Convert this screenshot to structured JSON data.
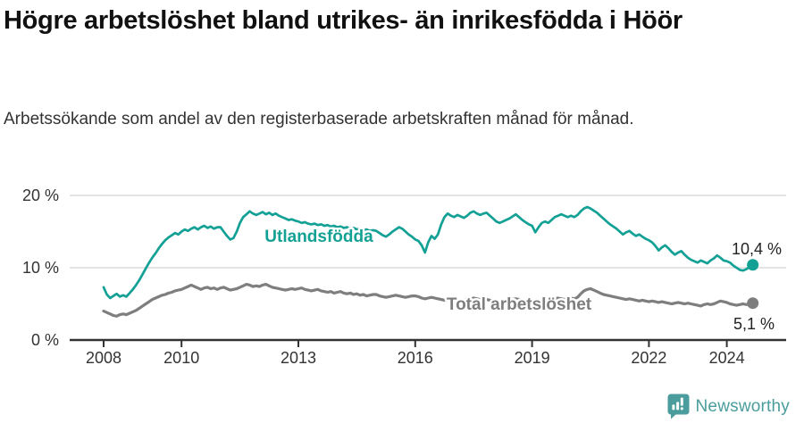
{
  "header": {
    "title": "Högre arbetslöshet bland utrikes- än inrikesfödda i Höör",
    "subtitle": "Arbetssökande som andel av den registerbaserade arbetskraften månad för månad."
  },
  "footer": {
    "brand": "Newsworthy"
  },
  "colors": {
    "accent_teal": "#13a095",
    "line_gray": "#7e7e7e",
    "logo_teal": "#4a9d9c",
    "grid": "#dcdcdc",
    "axis": "#333333",
    "label_text": "#222222"
  },
  "chart_data": {
    "type": "line",
    "unit": "%",
    "frequency": "monthly",
    "x_start": {
      "year": 2008,
      "month": 1
    },
    "x_end": {
      "year": 2024,
      "month": 9
    },
    "ylim": [
      0,
      20
    ],
    "grid": true,
    "yticks": [
      {
        "value": 0,
        "label": "0 %"
      },
      {
        "value": 10,
        "label": "10 %"
      },
      {
        "value": 20,
        "label": "20 %"
      }
    ],
    "xticks": [
      {
        "year": 2008,
        "label": "2008"
      },
      {
        "year": 2010,
        "label": "2010"
      },
      {
        "year": 2013,
        "label": "2013"
      },
      {
        "year": 2016,
        "label": "2016"
      },
      {
        "year": 2019,
        "label": "2019"
      },
      {
        "year": 2022,
        "label": "2022"
      },
      {
        "year": 2024,
        "label": "2024"
      }
    ],
    "series": [
      {
        "name": "Utlandsfödda",
        "color": "#13a095",
        "end_value": 10.4,
        "end_label": "10,4 %",
        "values": [
          7.3,
          6.3,
          5.8,
          6.1,
          6.4,
          6.0,
          6.2,
          6.0,
          6.5,
          7.0,
          7.6,
          8.3,
          9.1,
          9.9,
          10.7,
          11.4,
          12.0,
          12.7,
          13.3,
          13.8,
          14.2,
          14.5,
          14.8,
          14.6,
          15.0,
          15.3,
          15.1,
          15.4,
          15.6,
          15.3,
          15.6,
          15.8,
          15.5,
          15.7,
          15.4,
          15.6,
          15.6,
          15.0,
          14.4,
          13.9,
          14.1,
          15.0,
          16.2,
          17.0,
          17.4,
          17.8,
          17.5,
          17.3,
          17.5,
          17.7,
          17.4,
          17.6,
          17.3,
          17.5,
          17.2,
          17.0,
          16.8,
          16.6,
          16.7,
          16.5,
          16.4,
          16.2,
          16.3,
          16.1,
          16.0,
          16.1,
          15.9,
          16.0,
          15.8,
          15.9,
          15.7,
          15.8,
          15.6,
          15.7,
          15.5,
          15.6,
          15.4,
          15.5,
          15.3,
          15.4,
          15.2,
          15.3,
          15.1,
          15.2,
          15.1,
          14.8,
          14.5,
          14.3,
          14.6,
          15.0,
          15.3,
          15.6,
          15.4,
          15.0,
          14.6,
          14.3,
          13.9,
          13.7,
          13.1,
          12.1,
          13.5,
          14.4,
          14.0,
          14.6,
          16.0,
          17.0,
          17.5,
          17.2,
          17.0,
          17.3,
          17.1,
          16.9,
          17.2,
          17.6,
          17.8,
          17.5,
          17.3,
          17.5,
          17.6,
          17.2,
          16.8,
          16.4,
          16.2,
          16.4,
          16.6,
          16.8,
          17.1,
          17.4,
          17.0,
          16.6,
          16.3,
          16.0,
          15.8,
          14.9,
          15.6,
          16.2,
          16.4,
          16.2,
          16.6,
          17.0,
          17.2,
          17.4,
          17.2,
          17.0,
          17.2,
          17.0,
          17.3,
          17.8,
          18.2,
          18.4,
          18.2,
          17.9,
          17.6,
          17.2,
          16.8,
          16.4,
          16.0,
          15.7,
          15.4,
          15.0,
          14.6,
          14.9,
          15.1,
          14.7,
          14.4,
          14.6,
          14.3,
          14.0,
          13.8,
          13.5,
          13.0,
          12.4,
          12.8,
          13.1,
          12.7,
          12.2,
          11.8,
          12.1,
          12.3,
          11.8,
          11.4,
          11.1,
          10.9,
          10.7,
          11.0,
          10.8,
          10.6,
          11.0,
          11.3,
          11.7,
          11.4,
          11.0,
          10.9,
          10.7,
          10.3,
          10.0,
          9.7,
          9.6,
          9.8,
          10.1,
          10.4
        ]
      },
      {
        "name": "Total arbetslöshet",
        "color": "#7e7e7e",
        "end_value": 5.1,
        "end_label": "5,1 %",
        "values": [
          4.0,
          3.8,
          3.6,
          3.4,
          3.3,
          3.5,
          3.6,
          3.5,
          3.7,
          3.9,
          4.1,
          4.4,
          4.7,
          5.0,
          5.3,
          5.6,
          5.8,
          6.0,
          6.2,
          6.3,
          6.5,
          6.6,
          6.8,
          6.9,
          7.0,
          7.2,
          7.4,
          7.6,
          7.4,
          7.2,
          7.0,
          7.2,
          7.3,
          7.1,
          7.2,
          7.0,
          7.2,
          7.3,
          7.1,
          6.9,
          7.0,
          7.1,
          7.3,
          7.5,
          7.7,
          7.6,
          7.4,
          7.5,
          7.4,
          7.6,
          7.7,
          7.5,
          7.3,
          7.2,
          7.1,
          7.0,
          6.9,
          7.0,
          7.1,
          7.0,
          7.1,
          7.2,
          7.0,
          6.9,
          6.8,
          6.9,
          7.0,
          6.8,
          6.7,
          6.6,
          6.7,
          6.5,
          6.6,
          6.7,
          6.5,
          6.4,
          6.5,
          6.3,
          6.4,
          6.2,
          6.3,
          6.1,
          6.2,
          6.3,
          6.3,
          6.1,
          6.0,
          5.9,
          6.0,
          6.1,
          6.2,
          6.1,
          6.0,
          5.9,
          6.0,
          6.1,
          6.1,
          6.0,
          5.8,
          5.7,
          5.8,
          5.9,
          5.8,
          5.7,
          5.6,
          5.5,
          5.6,
          5.5,
          5.6,
          5.5,
          5.4,
          5.5,
          5.6,
          5.7,
          5.8,
          5.7,
          5.6,
          5.5,
          5.6,
          5.5,
          5.4,
          5.3,
          5.4,
          5.5,
          5.6,
          5.5,
          5.6,
          5.7,
          5.6,
          5.5,
          5.4,
          5.5,
          5.4,
          5.3,
          5.4,
          5.5,
          5.6,
          5.5,
          5.6,
          5.7,
          5.8,
          5.7,
          5.6,
          5.7,
          5.8,
          5.7,
          5.9,
          6.4,
          6.8,
          7.0,
          7.1,
          6.9,
          6.7,
          6.5,
          6.3,
          6.2,
          6.1,
          6.0,
          5.9,
          5.8,
          5.7,
          5.6,
          5.7,
          5.6,
          5.5,
          5.4,
          5.5,
          5.4,
          5.3,
          5.4,
          5.3,
          5.2,
          5.3,
          5.2,
          5.1,
          5.0,
          5.1,
          5.2,
          5.1,
          5.0,
          5.1,
          5.0,
          4.9,
          4.8,
          4.7,
          4.9,
          5.0,
          4.9,
          5.0,
          5.2,
          5.4,
          5.3,
          5.2,
          5.0,
          4.9,
          4.8,
          4.9,
          5.0,
          4.9,
          5.0,
          5.1
        ]
      }
    ]
  }
}
